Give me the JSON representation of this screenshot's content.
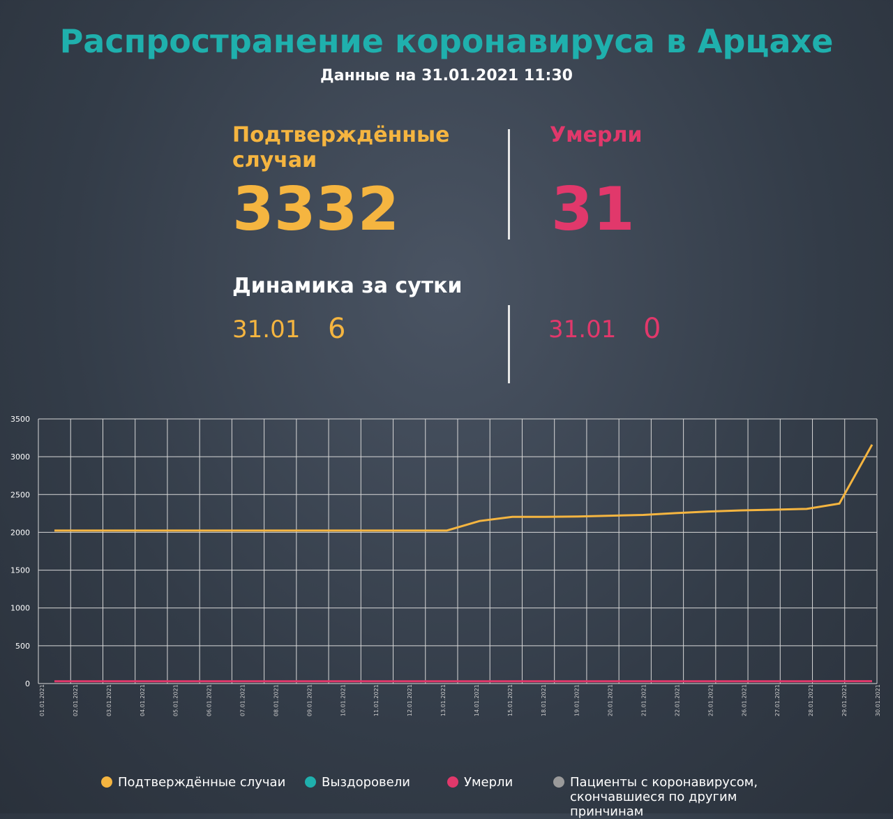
{
  "header": {
    "title": "Распространение коронавируса в Арцахе",
    "subtitle": "Данные на 31.01.2021 11:30"
  },
  "stats": {
    "confirmed_label": "Подтверждённые случаи",
    "confirmed_value": "3332",
    "deaths_label": "Умерли",
    "deaths_value": "31",
    "dynamics_title": "Динамика за сутки",
    "confirmed_day": "31.01",
    "confirmed_delta": "6",
    "deaths_day": "31.01",
    "deaths_delta": "0"
  },
  "colors": {
    "title": "#1fb0ad",
    "confirmed": "#f5b540",
    "recovered": "#1fb0ad",
    "deaths": "#e1386b",
    "other": "#9a9a9a"
  },
  "legend": [
    "Подтверждённые случаи",
    "Выздоровели",
    "Умерли",
    "Пациенты с коронавирусом, скончавшиеся по другим принчинам"
  ],
  "chart_data": {
    "type": "line",
    "ylim": [
      0,
      3500
    ],
    "yticks": [
      0,
      500,
      1000,
      1500,
      2000,
      2500,
      3000,
      3500
    ],
    "grid": true,
    "categories": [
      "01.01.2021",
      "02.01.2021",
      "03.01.2021",
      "04.01.2021",
      "05.01.2021",
      "06.01.2021",
      "07.01.2021",
      "08.01.2021",
      "09.01.2021",
      "10.01.2021",
      "11.01.2021",
      "12.01.2021",
      "13.01.2021",
      "14.01.2021",
      "15.01.2021",
      "18.01.2021",
      "19.01.2021",
      "20.01.2021",
      "21.01.2021",
      "22.01.2021",
      "25.01.2021",
      "26.01.2021",
      "27.01.2021",
      "28.01.2021",
      "29.01.2021",
      "30.01.2021"
    ],
    "series": [
      {
        "name": "Подтверждённые случаи",
        "color": "#f5b540",
        "values": [
          2024,
          2024,
          2024,
          2024,
          2024,
          2024,
          2024,
          2024,
          2024,
          2024,
          2024,
          2024,
          2024,
          2150,
          2205,
          2205,
          2210,
          2220,
          2230,
          2255,
          2275,
          2290,
          2300,
          2310,
          2380,
          3160
        ]
      },
      {
        "name": "Умерли",
        "color": "#e1386b",
        "values": [
          30,
          30,
          30,
          30,
          30,
          30,
          30,
          30,
          30,
          30,
          30,
          30,
          30,
          30,
          30,
          30,
          30,
          30,
          30,
          30,
          30,
          30,
          30,
          30,
          31,
          31
        ]
      }
    ]
  }
}
